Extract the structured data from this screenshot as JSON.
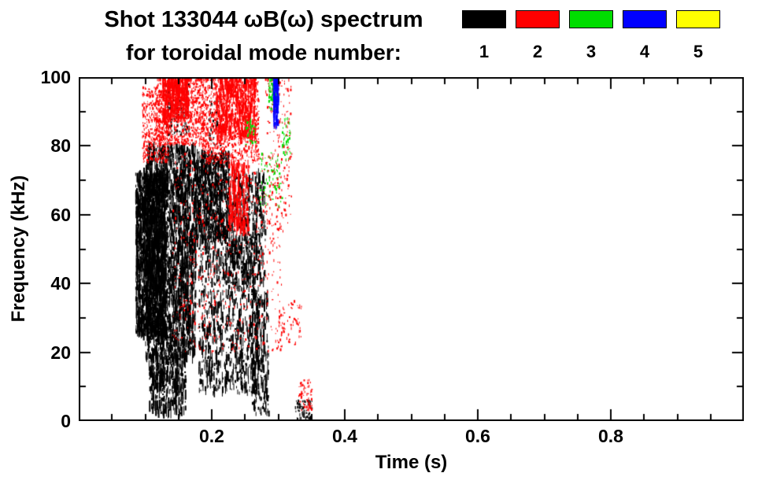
{
  "chart_data": {
    "type": "scatter",
    "title": "Shot 133044 ωB(ω) spectrum for toroidal mode number: 1 2 3 4 5",
    "title_line1": "Shot 133044 ωB(ω) spectrum",
    "title_line2": "for toroidal mode number:",
    "xlabel": "Time (s)",
    "ylabel": "Frequency (kHz)",
    "xlim": [
      0.0,
      1.0
    ],
    "ylim": [
      0,
      100
    ],
    "xticks": [
      0.2,
      0.4,
      0.6,
      0.8
    ],
    "xtick_labels": [
      "0.2",
      "0.4",
      "0.6",
      "0.8"
    ],
    "yticks": [
      0,
      20,
      40,
      60,
      80,
      100
    ],
    "ytick_labels": [
      "0",
      "20",
      "40",
      "60",
      "80",
      "100"
    ],
    "xtick_minor_step": 0.05,
    "ytick_minor_step": 10,
    "grid": false,
    "legend_position": "top-right",
    "background": "#ffffff",
    "axis_color": "#000000",
    "series": [
      {
        "name": "1",
        "color": "#000000",
        "clusters": [
          {
            "t": [
              0.085,
              0.13
            ],
            "f": [
              25,
              72
            ],
            "n": 1700,
            "style": "streaks"
          },
          {
            "t": [
              0.1,
              0.175
            ],
            "f": [
              18,
              80
            ],
            "n": 2300,
            "style": "streaks"
          },
          {
            "t": [
              0.105,
              0.16
            ],
            "f": [
              2,
              20
            ],
            "n": 420,
            "style": "streaks"
          },
          {
            "t": [
              0.13,
              0.165
            ],
            "f": [
              83,
              98
            ],
            "n": 200,
            "style": "specks"
          },
          {
            "t": [
              0.175,
              0.225
            ],
            "f": [
              52,
              78
            ],
            "n": 800,
            "style": "streaks"
          },
          {
            "t": [
              0.18,
              0.27
            ],
            "f": [
              8,
              52
            ],
            "n": 800,
            "style": "streaks"
          },
          {
            "t": [
              0.225,
              0.28
            ],
            "f": [
              40,
              72
            ],
            "n": 420,
            "style": "streaks"
          },
          {
            "t": [
              0.26,
              0.285
            ],
            "f": [
              2,
              38
            ],
            "n": 230,
            "style": "streaks"
          },
          {
            "t": [
              0.325,
              0.35
            ],
            "f": [
              0,
              6
            ],
            "n": 80,
            "style": "specks"
          },
          {
            "t": [
              0.195,
              0.215
            ],
            "f": [
              80,
              93
            ],
            "n": 60,
            "style": "specks"
          }
        ]
      },
      {
        "name": "2",
        "color": "#ff0000",
        "clusters": [
          {
            "t": [
              0.095,
              0.135
            ],
            "f": [
              75,
              97
            ],
            "n": 420,
            "style": "specks"
          },
          {
            "t": [
              0.115,
              0.19
            ],
            "f": [
              80,
              100
            ],
            "n": 900,
            "style": "specks"
          },
          {
            "t": [
              0.125,
              0.165
            ],
            "f": [
              88,
              100
            ],
            "n": 300,
            "style": "streaks"
          },
          {
            "t": [
              0.185,
              0.27
            ],
            "f": [
              75,
              100
            ],
            "n": 1000,
            "style": "specks"
          },
          {
            "t": [
              0.205,
              0.265
            ],
            "f": [
              82,
              100
            ],
            "n": 400,
            "style": "streaks"
          },
          {
            "t": [
              0.14,
              0.305
            ],
            "f": [
              20,
              78
            ],
            "n": 600,
            "style": "specks"
          },
          {
            "t": [
              0.225,
              0.255
            ],
            "f": [
              55,
              75
            ],
            "n": 260,
            "style": "streaks"
          },
          {
            "t": [
              0.28,
              0.32
            ],
            "f": [
              55,
              100
            ],
            "n": 200,
            "style": "specks"
          },
          {
            "t": [
              0.3,
              0.335
            ],
            "f": [
              22,
              35
            ],
            "n": 70,
            "style": "specks"
          },
          {
            "t": [
              0.33,
              0.35
            ],
            "f": [
              3,
              12
            ],
            "n": 60,
            "style": "specks"
          }
        ]
      },
      {
        "name": "3",
        "color": "#00dd00",
        "clusters": [
          {
            "t": [
              0.25,
              0.265
            ],
            "f": [
              80,
              88
            ],
            "n": 30,
            "style": "specks"
          },
          {
            "t": [
              0.27,
              0.305
            ],
            "f": [
              62,
              78
            ],
            "n": 70,
            "style": "specks"
          },
          {
            "t": [
              0.285,
              0.3
            ],
            "f": [
              90,
              100
            ],
            "n": 80,
            "style": "specks"
          },
          {
            "t": [
              0.305,
              0.318
            ],
            "f": [
              76,
              88
            ],
            "n": 40,
            "style": "specks"
          }
        ]
      },
      {
        "name": "4",
        "color": "#0000ff",
        "clusters": [
          {
            "t": [
              0.292,
              0.299
            ],
            "f": [
              86,
              100
            ],
            "n": 110,
            "style": "streaks"
          }
        ]
      },
      {
        "name": "5",
        "color": "#ffff00",
        "clusters": []
      }
    ]
  }
}
